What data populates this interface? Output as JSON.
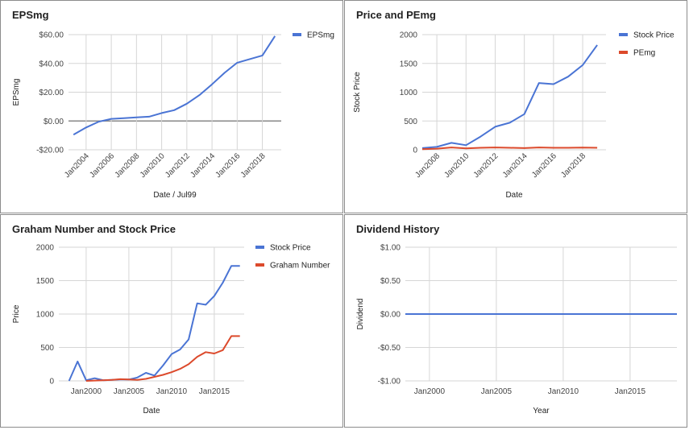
{
  "colors": {
    "blue": "#4a74d4",
    "red": "#dc4a2c",
    "grid": "#d6d6d6",
    "zero": "#888888"
  },
  "chart_data": [
    {
      "id": "eps",
      "type": "line",
      "title": "EPSmg",
      "xlabel": "Date / Jul99",
      "ylabel": "EPSmg",
      "xlim": [
        2002.6,
        2019.5
      ],
      "ylim": [
        -20,
        60
      ],
      "yticks": [
        -20,
        0,
        20,
        40,
        60
      ],
      "ytick_labels": [
        "-$20.00",
        "$0.00",
        "$20.00",
        "$40.00",
        "$60.00"
      ],
      "xticks": [
        2004,
        2006,
        2008,
        2010,
        2012,
        2014,
        2016,
        2018
      ],
      "xtick_labels": [
        "Jan2004",
        "Jan2006",
        "Jan2008",
        "Jan2010",
        "Jan2012",
        "Jan2014",
        "Jan2016",
        "Jan2018"
      ],
      "x_rotated": true,
      "legend_position": "right",
      "zero_line": true,
      "series": [
        {
          "name": "EPSmg",
          "color": "blue",
          "x": [
            2003,
            2004,
            2005,
            2006,
            2007,
            2008,
            2009,
            2010,
            2011,
            2012,
            2013,
            2014,
            2015,
            2016,
            2017,
            2018,
            2019
          ],
          "y": [
            -9.5,
            -4.5,
            -0.5,
            1.5,
            2,
            2.5,
            3,
            5.5,
            7.5,
            12,
            18,
            25.5,
            33.5,
            40.5,
            43,
            45.5,
            59
          ]
        }
      ]
    },
    {
      "id": "pe",
      "type": "line",
      "title": "Price and PEmg",
      "xlabel": "Date",
      "ylabel": "Stock Price",
      "xlim": [
        2007,
        2019.6
      ],
      "ylim": [
        0,
        2000
      ],
      "yticks": [
        0,
        500,
        1000,
        1500,
        2000
      ],
      "ytick_labels": [
        "0",
        "500",
        "1000",
        "1500",
        "2000"
      ],
      "xticks": [
        2008,
        2010,
        2012,
        2014,
        2016,
        2018
      ],
      "xtick_labels": [
        "Jan2008",
        "Jan2010",
        "Jan2012",
        "Jan2014",
        "Jan2016",
        "Jan2018"
      ],
      "x_rotated": true,
      "legend_position": "right",
      "series": [
        {
          "name": "Stock Price",
          "color": "blue",
          "x": [
            2007,
            2008,
            2009,
            2010,
            2011,
            2012,
            2013,
            2014,
            2015,
            2016,
            2017,
            2018,
            2019
          ],
          "y": [
            30,
            50,
            120,
            80,
            230,
            400,
            470,
            620,
            1160,
            1140,
            1270,
            1470,
            1820
          ]
        },
        {
          "name": "PEmg",
          "color": "red",
          "x": [
            2007,
            2008,
            2009,
            2010,
            2011,
            2012,
            2013,
            2014,
            2015,
            2016,
            2017,
            2018,
            2019
          ],
          "y": [
            10,
            20,
            40,
            25,
            35,
            40,
            35,
            30,
            40,
            35,
            35,
            38,
            35
          ]
        }
      ]
    },
    {
      "id": "graham",
      "type": "line",
      "title": "Graham Number and Stock Price",
      "xlabel": "Date",
      "ylabel": "Price",
      "xlim": [
        1996.8,
        2018.5
      ],
      "ylim": [
        0,
        2000
      ],
      "yticks": [
        0,
        500,
        1000,
        1500,
        2000
      ],
      "ytick_labels": [
        "0",
        "500",
        "1000",
        "1500",
        "2000"
      ],
      "xticks": [
        2000,
        2005,
        2010,
        2015
      ],
      "xtick_labels": [
        "Jan2000",
        "Jan2005",
        "Jan2010",
        "Jan2015"
      ],
      "x_rotated": false,
      "legend_position": "right",
      "series": [
        {
          "name": "Stock Price",
          "color": "blue",
          "x": [
            1998,
            1999,
            2000,
            2001,
            2002,
            2003,
            2004,
            2005,
            2006,
            2007,
            2008,
            2009,
            2010,
            2011,
            2012,
            2013,
            2014,
            2015,
            2016,
            2017,
            2018
          ],
          "y": [
            0,
            290,
            10,
            40,
            10,
            15,
            20,
            20,
            50,
            120,
            80,
            230,
            400,
            470,
            620,
            1160,
            1140,
            1270,
            1470,
            1720,
            1720
          ]
        },
        {
          "name": "Graham Number",
          "color": "red",
          "x": [
            2000,
            2001,
            2002,
            2003,
            2004,
            2005,
            2006,
            2007,
            2008,
            2009,
            2010,
            2011,
            2012,
            2013,
            2014,
            2015,
            2016,
            2017,
            2018
          ],
          "y": [
            0,
            5,
            10,
            15,
            25,
            20,
            15,
            30,
            60,
            90,
            130,
            180,
            250,
            360,
            430,
            410,
            460,
            670,
            670
          ]
        }
      ]
    },
    {
      "id": "dividend",
      "type": "line",
      "title": "Dividend History",
      "xlabel": "Year",
      "ylabel": "Dividend",
      "xlim": [
        1998.2,
        2018.5
      ],
      "ylim": [
        -1,
        1
      ],
      "yticks": [
        -1,
        -0.5,
        0,
        0.5,
        1
      ],
      "ytick_labels": [
        "-$1.00",
        "-$0.50",
        "$0.00",
        "$0.50",
        "$1.00"
      ],
      "xticks": [
        2000,
        2005,
        2010,
        2015
      ],
      "xtick_labels": [
        "Jan2000",
        "Jan2005",
        "Jan2010",
        "Jan2015"
      ],
      "x_rotated": false,
      "legend_position": "none",
      "series": [
        {
          "color": "blue",
          "x": [
            1998.2,
            2018.5
          ],
          "y": [
            0,
            0
          ]
        }
      ]
    }
  ]
}
